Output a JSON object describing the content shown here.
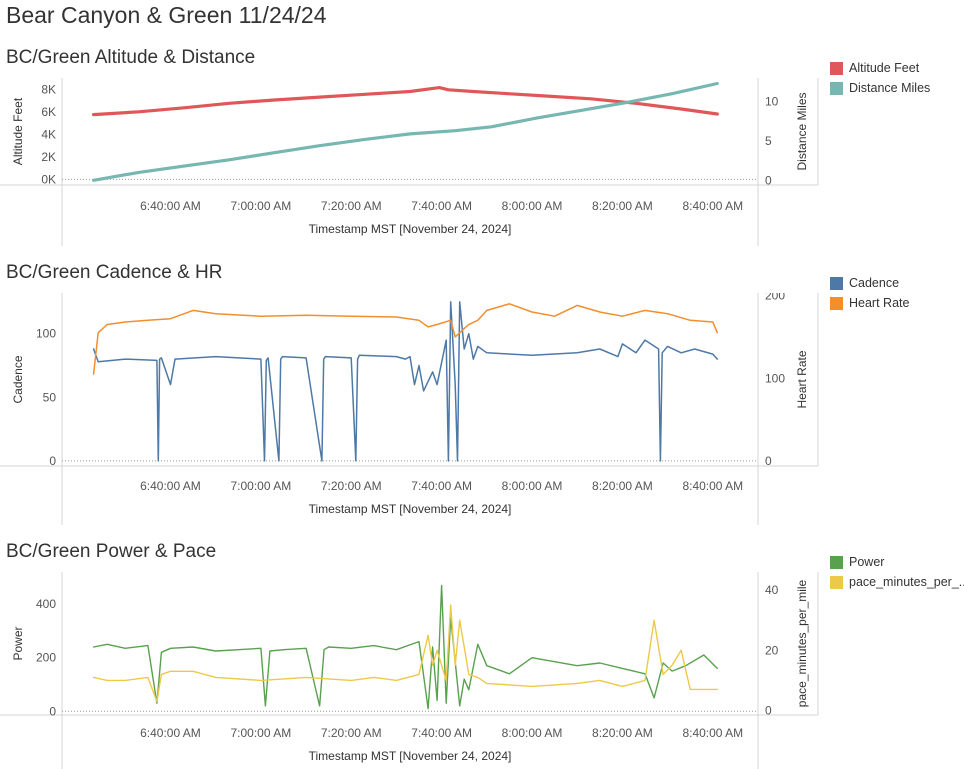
{
  "page": {
    "title": "Bear Canyon & Green 11/24/24"
  },
  "chart_data": [
    {
      "id": "alt",
      "type": "line",
      "title": "BC/Green Altitude & Distance",
      "xlabel": "Timestamp MST [November 24, 2024]",
      "x_ticks": [
        "6:40:00 AM",
        "7:00:00 AM",
        "7:20:00 AM",
        "7:40:00 AM",
        "8:00:00 AM",
        "8:20:00 AM",
        "8:40:00 AM"
      ],
      "x_tick_minutes": [
        400,
        420,
        440,
        460,
        480,
        500,
        520
      ],
      "xlim_minutes": [
        376,
        530
      ],
      "left_axis": {
        "label": "Altitude Feet",
        "ylim": [
          -500,
          9000
        ],
        "ticks": [
          0,
          2000,
          4000,
          6000,
          8000
        ],
        "tick_labels": [
          "0K",
          "2K",
          "4K",
          "6K",
          "8K"
        ]
      },
      "right_axis": {
        "label": "Distance Miles",
        "ylim": [
          -0.6,
          13
        ],
        "ticks": [
          0,
          5,
          10
        ],
        "tick_labels": [
          "0",
          "5",
          "10"
        ]
      },
      "legend": [
        {
          "name": "Altitude Feet",
          "color": "#e15759"
        },
        {
          "name": "Distance Miles",
          "color": "#76b7b2"
        }
      ],
      "series": [
        {
          "name": "Altitude Feet",
          "axis": "left",
          "color": "#e15759",
          "width": 3.2,
          "x": [
            383,
            393,
            403,
            413,
            423,
            433,
            443,
            453,
            459.5,
            461.5,
            467,
            473,
            483,
            493,
            503,
            513,
            521
          ],
          "y": [
            5750,
            6000,
            6350,
            6750,
            7050,
            7300,
            7550,
            7800,
            8150,
            7950,
            7800,
            7650,
            7400,
            7150,
            6750,
            6250,
            5800
          ]
        },
        {
          "name": "Distance Miles",
          "axis": "right",
          "color": "#76b7b2",
          "width": 3.2,
          "x": [
            383,
            393,
            403,
            413,
            423,
            433,
            443,
            453,
            463,
            471,
            481,
            491,
            501,
            511,
            521
          ],
          "y": [
            0,
            1.0,
            1.8,
            2.6,
            3.5,
            4.4,
            5.2,
            5.9,
            6.3,
            6.8,
            7.9,
            8.9,
            9.9,
            11.0,
            12.3
          ]
        }
      ]
    },
    {
      "id": "cad",
      "type": "line",
      "title": "BC/Green Cadence & HR",
      "xlabel": "Timestamp MST [November 24, 2024]",
      "x_ticks": [
        "6:40:00 AM",
        "7:00:00 AM",
        "7:20:00 AM",
        "7:40:00 AM",
        "8:00:00 AM",
        "8:20:00 AM",
        "8:40:00 AM"
      ],
      "x_tick_minutes": [
        400,
        420,
        440,
        460,
        480,
        500,
        520
      ],
      "xlim_minutes": [
        376,
        530
      ],
      "left_axis": {
        "label": "Cadence",
        "ylim": [
          -4,
          132
        ],
        "ticks": [
          0,
          50,
          100
        ],
        "tick_labels": [
          "0",
          "50",
          "100"
        ]
      },
      "right_axis": {
        "label": "Heart Rate",
        "ylim": [
          -6,
          203
        ],
        "ticks": [
          0,
          100,
          200
        ],
        "tick_labels": [
          "0",
          "100",
          "200"
        ]
      },
      "legend": [
        {
          "name": "Cadence",
          "color": "#4e79a7"
        },
        {
          "name": "Heart Rate",
          "color": "#f28e2b"
        }
      ],
      "series": [
        {
          "name": "Cadence",
          "axis": "left",
          "color": "#4e79a7",
          "width": 1.5,
          "x": [
            383,
            384,
            390,
            397,
            397.3,
            397.6,
            398,
            400,
            401,
            410,
            420,
            420.8,
            421.2,
            421.6,
            424,
            424.4,
            424.8,
            430,
            433.5,
            433.9,
            434.3,
            440,
            441,
            441.4,
            441.8,
            450,
            452,
            453,
            454,
            455,
            456,
            458,
            459,
            461,
            461.5,
            462,
            463,
            463.5,
            464,
            465,
            466,
            467,
            468,
            470,
            480,
            490,
            495,
            499,
            500,
            503,
            505,
            508,
            508.4,
            508.8,
            510,
            513,
            516,
            520,
            521
          ],
          "y": [
            88,
            78,
            80,
            79,
            0,
            80,
            81,
            60,
            80,
            82,
            80,
            0,
            79,
            81,
            0,
            80,
            82,
            81,
            0,
            80,
            82,
            81,
            0,
            80,
            83,
            82,
            80,
            82,
            60,
            75,
            55,
            70,
            60,
            95,
            0,
            125,
            60,
            0,
            125,
            88,
            100,
            80,
            90,
            85,
            83,
            85,
            88,
            82,
            92,
            85,
            95,
            88,
            0,
            85,
            90,
            85,
            88,
            84,
            80
          ]
        },
        {
          "name": "Heart Rate",
          "axis": "right",
          "color": "#f28e2b",
          "width": 1.5,
          "x": [
            383,
            384,
            386,
            390,
            395,
            400,
            405,
            410,
            420,
            430,
            440,
            450,
            455,
            457,
            459,
            462,
            463,
            465,
            466,
            468,
            470,
            475,
            480,
            485,
            490,
            495,
            500,
            505,
            510,
            515,
            520,
            521
          ],
          "y": [
            105,
            155,
            165,
            168,
            170,
            172,
            182,
            178,
            175,
            176,
            175,
            174,
            170,
            162,
            165,
            170,
            150,
            160,
            165,
            170,
            182,
            190,
            180,
            175,
            188,
            180,
            175,
            182,
            178,
            170,
            168,
            155
          ]
        }
      ]
    },
    {
      "id": "pow",
      "type": "line",
      "title": "BC/Green Power & Pace",
      "xlabel": "Timestamp MST [November 24, 2024]",
      "x_ticks": [
        "6:40:00 AM",
        "7:00:00 AM",
        "7:20:00 AM",
        "7:40:00 AM",
        "8:00:00 AM",
        "8:20:00 AM",
        "8:40:00 AM"
      ],
      "x_tick_minutes": [
        400,
        420,
        440,
        460,
        480,
        500,
        520
      ],
      "xlim_minutes": [
        376,
        530
      ],
      "left_axis": {
        "label": "Power",
        "ylim": [
          -14,
          520
        ],
        "ticks": [
          0,
          200,
          400
        ],
        "tick_labels": [
          "0",
          "200",
          "400"
        ]
      },
      "right_axis": {
        "label": "pace_minutes_per_mile",
        "ylim": [
          -1.5,
          46
        ],
        "ticks": [
          0,
          20,
          40
        ],
        "tick_labels": [
          "0",
          "20",
          "40"
        ]
      },
      "legend": [
        {
          "name": "Power",
          "color": "#59a14f"
        },
        {
          "name": "pace_minutes_per_..",
          "color": "#edc948"
        }
      ],
      "series": [
        {
          "name": "Power",
          "axis": "left",
          "color": "#59a14f",
          "width": 1.4,
          "x": [
            383,
            386,
            390,
            395,
            397,
            398,
            400,
            405,
            410,
            415,
            420,
            421,
            422,
            425,
            430,
            433,
            434,
            435,
            440,
            445,
            450,
            455,
            457,
            458,
            459,
            460,
            461,
            462,
            464,
            465,
            466,
            468,
            470,
            475,
            480,
            490,
            495,
            500,
            505,
            507,
            509,
            511,
            514,
            518,
            521
          ],
          "y": [
            240,
            250,
            235,
            245,
            30,
            220,
            235,
            240,
            225,
            230,
            235,
            20,
            225,
            230,
            235,
            20,
            230,
            240,
            235,
            245,
            230,
            260,
            10,
            240,
            40,
            470,
            30,
            350,
            20,
            120,
            80,
            250,
            170,
            140,
            200,
            170,
            180,
            160,
            140,
            50,
            180,
            150,
            170,
            210,
            160
          ]
        },
        {
          "name": "pace_minutes_per_mile",
          "axis": "right",
          "color": "#edc948",
          "width": 1.4,
          "x": [
            383,
            386,
            390,
            395,
            397,
            398,
            400,
            405,
            410,
            420,
            430,
            440,
            445,
            450,
            455,
            457,
            458,
            459,
            461,
            462,
            463,
            464,
            466,
            468,
            470,
            480,
            490,
            495,
            500,
            505,
            507,
            509,
            511,
            513,
            515,
            521
          ],
          "y": [
            11,
            10,
            10,
            11,
            3,
            12,
            13,
            13,
            11,
            10,
            11,
            10,
            11,
            10,
            12,
            25,
            15,
            20,
            10,
            35,
            15,
            30,
            12,
            11,
            9,
            8,
            9,
            10,
            8,
            10,
            30,
            12,
            15,
            20,
            7,
            7
          ]
        }
      ]
    }
  ]
}
